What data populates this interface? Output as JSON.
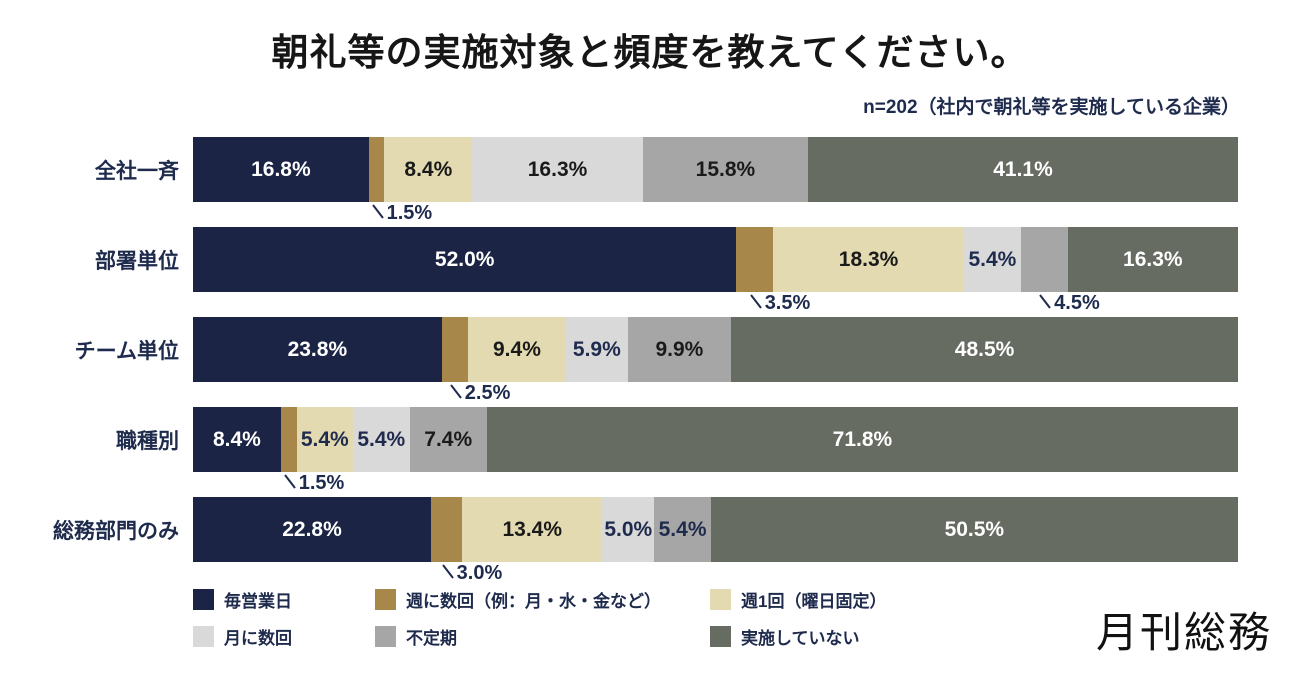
{
  "title": "朝礼等の実施対象と頻度を教えてください。",
  "subtitle": "n=202（社内で朝礼等を実施している企業）",
  "logo_text": "月刊総務",
  "colors": {
    "background": "#ffffff",
    "title_text": "#161616",
    "navy_text": "#1f2b4d",
    "label": {
      "white": "#ffffff",
      "dark": "#1a1a1a",
      "navy": "#1f2b4d"
    }
  },
  "chart_data": {
    "type": "bar",
    "stacked": true,
    "orientation": "horizontal",
    "value_unit": "%",
    "title": "朝礼等の実施対象と頻度を教えてください。",
    "subtitle": "n=202（社内で朝礼等を実施している企業）",
    "axis": "percentage 0-100, no visible axis or gridlines",
    "legend_position": "bottom",
    "categories": [
      "全社一斉",
      "部署単位",
      "チーム単位",
      "職種別",
      "総務部門のみ"
    ],
    "series": [
      {
        "name": "毎営業日",
        "color": "#1b2444",
        "values": [
          16.8,
          52.0,
          23.8,
          8.4,
          22.8
        ]
      },
      {
        "name": "週に数回（例：月・水・金など）",
        "color": "#a8874a",
        "values": [
          1.5,
          3.5,
          2.5,
          1.5,
          3.0
        ]
      },
      {
        "name": "週1回（曜日固定）",
        "color": "#e3dab1",
        "values": [
          8.4,
          18.3,
          9.4,
          5.4,
          13.4
        ]
      },
      {
        "name": "月に数回",
        "color": "#d9d9d9",
        "values": [
          16.3,
          5.4,
          5.9,
          5.4,
          5.0
        ]
      },
      {
        "name": "不定期",
        "color": "#a6a6a6",
        "values": [
          15.8,
          4.5,
          9.9,
          7.4,
          5.4
        ]
      },
      {
        "name": "実施していない",
        "color": "#676c62",
        "values": [
          41.1,
          16.3,
          48.5,
          71.8,
          50.5
        ]
      }
    ],
    "label_styles": [
      [
        "white",
        "callout",
        "dark",
        "dark",
        "dark",
        "white"
      ],
      [
        "white",
        "callout",
        "dark",
        "navy",
        "callout",
        "white"
      ],
      [
        "white",
        "callout",
        "dark",
        "navy",
        "dark",
        "white"
      ],
      [
        "white",
        "callout",
        "navy",
        "navy",
        "dark",
        "white"
      ],
      [
        "white",
        "callout",
        "dark",
        "navy",
        "navy",
        "white"
      ]
    ]
  }
}
